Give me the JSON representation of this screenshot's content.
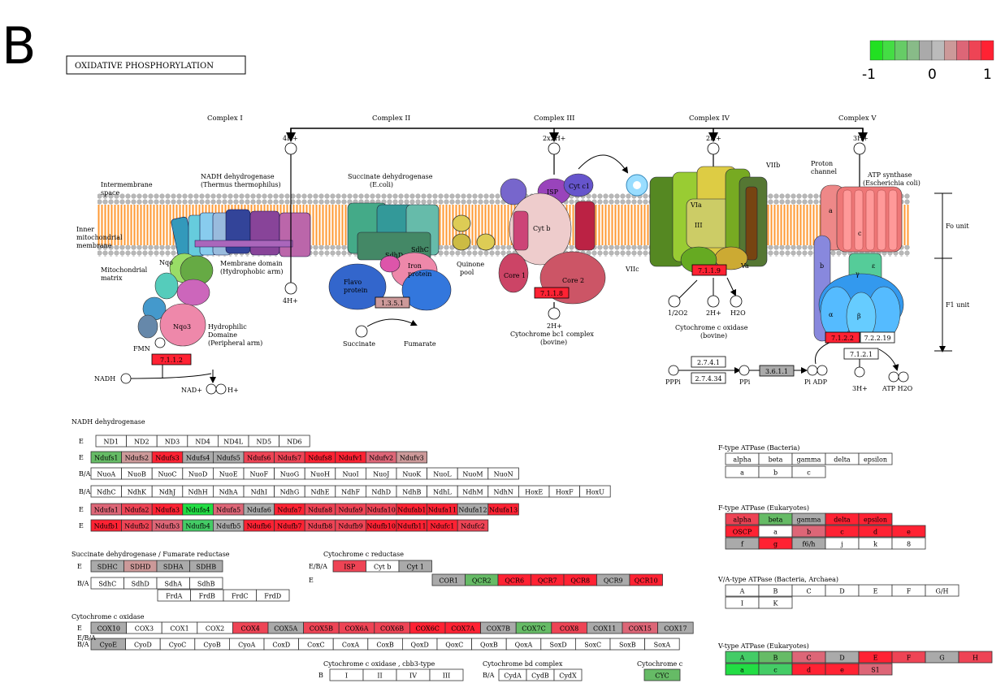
{
  "panel_letter": "B",
  "pathway_title": "OXIDATIVE PHOSPHORYLATION",
  "legend": {
    "min_label": "-1",
    "mid_label": "0",
    "max_label": "1",
    "colors": [
      "#22e022",
      "#44dd44",
      "#66cc66",
      "#88bb88",
      "#aaaaaa",
      "#bbbbbb",
      "#cc9999",
      "#dd6677",
      "#ee4455",
      "#ff2233"
    ]
  },
  "complex_labels": [
    "Complex I",
    "Complex II",
    "Complex III",
    "Complex IV",
    "Complex V"
  ],
  "proton_labels": {
    "c1_top": "4H+",
    "c1_bottom": "4H+",
    "c3_top": "2x2H+",
    "c3_bottom": "2H+",
    "c4_top": "2H+",
    "c4_mid": "2H+",
    "c5_top": "3H+",
    "c5_bottom": "3H+"
  },
  "annotations": {
    "intermembrane": [
      "Intermembrane",
      "space"
    ],
    "inner_membrane": [
      "Inner",
      "mitochondrial",
      "membrane"
    ],
    "matrix": [
      "Mitochondrial",
      "matrix"
    ],
    "nadh_dh": [
      "NADH dehydrogenase",
      "(Thermus thermophilus)"
    ],
    "membrane_domain": [
      "Membrane domain",
      "(Hydrophobic arm)"
    ],
    "hydrophilic": [
      "Hydrophilic",
      "Domaine",
      "(Peripheral arm)"
    ],
    "fmn": "FMN",
    "nadh": "NADH",
    "nad": "NAD+",
    "h_plus": "H+",
    "succ_dh": [
      "Succinate dehydrogenase",
      "(E.coli)"
    ],
    "flavo": [
      "Flavo",
      "protein"
    ],
    "iron": [
      "Iron",
      "protein"
    ],
    "quinone": [
      "Quinone",
      "pool"
    ],
    "succinate": "Succinate",
    "fumarate": "Fumarate",
    "cyt_bc1": [
      "Cytochrome bc1 complex",
      "(bovine)"
    ],
    "cyt_ox": [
      "Cytochrome c oxidase",
      "(bovine)"
    ],
    "o2": "1/2O2",
    "h2o": "H2O",
    "proton_channel": [
      "Proton",
      "channel"
    ],
    "atp_synth": [
      "ATP synthase",
      "(Escherichia coli)"
    ],
    "fo": "Fo unit",
    "f1": "F1 unit",
    "ppi1": "PPPi",
    "ppi2": "PPi",
    "pi_adp": "Pi ADP",
    "atp_h2o": "ATP H2O"
  },
  "ec_boxes": [
    {
      "id": "7.1.1.2",
      "color": "#ff2233"
    },
    {
      "id": "1.3.5.1",
      "color": "#cc9999"
    },
    {
      "id": "7.1.1.8",
      "color": "#ff2233"
    },
    {
      "id": "7.1.1.9",
      "color": "#ff2233"
    },
    {
      "id": "7.1.2.2",
      "color": "#ff2233"
    },
    {
      "id": "7.2.2.19",
      "color": "#ffffff"
    },
    {
      "id": "7.1.2.1",
      "color": "#ffffff"
    },
    {
      "id": "2.7.4.1",
      "color": "#ffffff"
    },
    {
      "id": "2.7.4.34",
      "color": "#ffffff"
    },
    {
      "id": "3.6.1.1",
      "color": "#aaaaaa"
    }
  ],
  "tables": [
    {
      "title": "NADH dehydrogenase",
      "rows": [
        {
          "label": "E",
          "cells": [
            [
              "ND1",
              "#fff"
            ],
            [
              "ND2",
              "#fff"
            ],
            [
              "ND3",
              "#fff"
            ],
            [
              "ND4",
              "#fff"
            ],
            [
              "ND4L",
              "#fff"
            ],
            [
              "ND5",
              "#fff"
            ],
            [
              "ND6",
              "#fff"
            ]
          ]
        },
        {
          "label": "E",
          "cells": [
            [
              "Ndufs1",
              "#66bb66"
            ],
            [
              "Ndufs2",
              "#cc9999"
            ],
            [
              "Ndufs3",
              "#ff2233"
            ],
            [
              "Ndufs4",
              "#aaaaaa"
            ],
            [
              "Ndufs5",
              "#aaaaaa"
            ],
            [
              "Ndufs6",
              "#ee4455"
            ],
            [
              "Ndufs7",
              "#ee4455"
            ],
            [
              "Ndufs8",
              "#ff2233"
            ],
            [
              "Ndufv1",
              "#ff2233"
            ],
            [
              "Ndufv2",
              "#dd6677"
            ],
            [
              "Ndufv3",
              "#cc9999"
            ]
          ]
        },
        {
          "label": "B/A",
          "cells": [
            [
              "NuoA",
              "#fff"
            ],
            [
              "NuoB",
              "#fff"
            ],
            [
              "NuoC",
              "#fff"
            ],
            [
              "NuoD",
              "#fff"
            ],
            [
              "NuoE",
              "#fff"
            ],
            [
              "NuoF",
              "#fff"
            ],
            [
              "NuoG",
              "#fff"
            ],
            [
              "NuoH",
              "#fff"
            ],
            [
              "NuoI",
              "#fff"
            ],
            [
              "NuoJ",
              "#fff"
            ],
            [
              "NuoK",
              "#fff"
            ],
            [
              "NuoL",
              "#fff"
            ],
            [
              "NuoM",
              "#fff"
            ],
            [
              "NuoN",
              "#fff"
            ]
          ]
        },
        {
          "label": "B/A",
          "cells": [
            [
              "NdhC",
              "#fff"
            ],
            [
              "NdhK",
              "#fff"
            ],
            [
              "NdhJ",
              "#fff"
            ],
            [
              "NdhH",
              "#fff"
            ],
            [
              "NdhA",
              "#fff"
            ],
            [
              "NdhI",
              "#fff"
            ],
            [
              "NdhG",
              "#fff"
            ],
            [
              "NdhE",
              "#fff"
            ],
            [
              "NdhF",
              "#fff"
            ],
            [
              "NdhD",
              "#fff"
            ],
            [
              "NdhB",
              "#fff"
            ],
            [
              "NdhL",
              "#fff"
            ],
            [
              "NdhM",
              "#fff"
            ],
            [
              "NdhN",
              "#fff"
            ],
            [
              "HoxE",
              "#fff"
            ],
            [
              "HoxF",
              "#fff"
            ],
            [
              "HoxU",
              "#fff"
            ]
          ]
        },
        {
          "label": "E",
          "cells": [
            [
              "Ndufa1",
              "#dd6677"
            ],
            [
              "Ndufa2",
              "#ee4455"
            ],
            [
              "Ndufa3",
              "#ff2233"
            ],
            [
              "Ndufa4",
              "#22dd44"
            ],
            [
              "Ndufa5",
              "#dd6677"
            ],
            [
              "Ndufa6",
              "#aaaaaa"
            ],
            [
              "Ndufa7",
              "#ff2233"
            ],
            [
              "Ndufa8",
              "#ee4455"
            ],
            [
              "Ndufa9",
              "#ee4455"
            ],
            [
              "Ndufa10",
              "#ee4455"
            ],
            [
              "Ndufab1",
              "#ff2233"
            ],
            [
              "Ndufa11",
              "#ff2233"
            ],
            [
              "Ndufa12",
              "#aaaaaa"
            ],
            [
              "Ndufa13",
              "#ff2233"
            ]
          ]
        },
        {
          "label": "E",
          "cells": [
            [
              "Ndufb1",
              "#ff2233"
            ],
            [
              "Ndufb2",
              "#ee4455"
            ],
            [
              "Ndufb3",
              "#dd6677"
            ],
            [
              "Ndufb4",
              "#44cc66"
            ],
            [
              "Ndufb5",
              "#aaaaaa"
            ],
            [
              "Ndufb6",
              "#ff2233"
            ],
            [
              "Ndufb7",
              "#ff2233"
            ],
            [
              "Ndufb8",
              "#ee4455"
            ],
            [
              "Ndufb9",
              "#ee4455"
            ],
            [
              "Ndufb10",
              "#ff2233"
            ],
            [
              "Ndufb11",
              "#ff2233"
            ],
            [
              "Ndufc1",
              "#ff2233"
            ],
            [
              "Ndufc2",
              "#ee4455"
            ]
          ]
        }
      ]
    },
    {
      "title": "Succinate dehydrogenase / Fumarate reductase",
      "rows": [
        {
          "label": "E",
          "cells": [
            [
              "SDHC",
              "#aaaaaa"
            ],
            [
              "SDHD",
              "#cc9999"
            ],
            [
              "SDHA",
              "#aaaaaa"
            ],
            [
              "SDHB",
              "#aaaaaa"
            ]
          ]
        },
        {
          "label": "B/A",
          "cells": [
            [
              "SdhC",
              "#fff"
            ],
            [
              "SdhD",
              "#fff"
            ],
            [
              "SdhA",
              "#fff"
            ],
            [
              "SdhB",
              "#fff"
            ]
          ]
        },
        {
          "label": "",
          "cells": [
            [
              "FrdA",
              "#fff"
            ],
            [
              "FrdB",
              "#fff"
            ],
            [
              "FrdC",
              "#fff"
            ],
            [
              "FrdD",
              "#fff"
            ]
          ]
        }
      ]
    },
    {
      "title": "Cytochrome c reductase",
      "rows": [
        {
          "label": "E/B/A",
          "cells": [
            [
              "ISP",
              "#ee4455"
            ],
            [
              "Cyt b",
              "#fff"
            ],
            [
              "Cyt 1",
              "#aaaaaa"
            ]
          ]
        },
        {
          "label": "E",
          "cells": [
            [
              "COR1",
              "#aaaaaa"
            ],
            [
              "QCR2",
              "#66bb66"
            ],
            [
              "QCR6",
              "#ff2233"
            ],
            [
              "QCR7",
              "#ff2233"
            ],
            [
              "QCR8",
              "#ff2233"
            ],
            [
              "QCR9",
              "#aaaaaa"
            ],
            [
              "QCR10",
              "#ff2233"
            ]
          ]
        }
      ]
    },
    {
      "title": "Cytochrome c oxidase",
      "rows": [
        {
          "label": "E",
          "cells": [
            [
              "COX10",
              "#aaaaaa"
            ],
            [
              "COX3",
              "#fff"
            ],
            [
              "COX1",
              "#fff"
            ],
            [
              "COX2",
              "#fff"
            ],
            [
              "COX4",
              "#ee4455"
            ],
            [
              "COX5A",
              "#aaaaaa"
            ],
            [
              "COX5B",
              "#ee4455"
            ],
            [
              "COX6A",
              "#ee4455"
            ],
            [
              "COX6B",
              "#ee4455"
            ],
            [
              "COX6C",
              "#ff2233"
            ],
            [
              "COX7A",
              "#ff2233"
            ],
            [
              "COX7B",
              "#aaaaaa"
            ],
            [
              "COX7C",
              "#66bb66"
            ],
            [
              "COX8",
              "#ee4455"
            ],
            [
              "COX11",
              "#aaaaaa"
            ],
            [
              "COX15",
              "#dd6677"
            ],
            [
              "COX17",
              "#aaaaaa"
            ]
          ]
        },
        {
          "label": "B/A",
          "cells": [
            [
              "CyoE",
              "#aaaaaa"
            ],
            [
              "CyoD",
              "#fff"
            ],
            [
              "CyoC",
              "#fff"
            ],
            [
              "CyoB",
              "#fff"
            ],
            [
              "CyoA",
              "#fff"
            ],
            [
              "CoxD",
              "#fff"
            ],
            [
              "CoxC",
              "#fff"
            ],
            [
              "CoxA",
              "#fff"
            ],
            [
              "CoxB",
              "#fff"
            ],
            [
              "QoxD",
              "#fff"
            ],
            [
              "QoxC",
              "#fff"
            ],
            [
              "QoxB",
              "#fff"
            ],
            [
              "QoxA",
              "#fff"
            ],
            [
              "SoxD",
              "#fff"
            ],
            [
              "SoxC",
              "#fff"
            ],
            [
              "SoxB",
              "#fff"
            ],
            [
              "SoxA",
              "#fff"
            ]
          ]
        },
        {
          "label": "E/B/A",
          "cells": []
        }
      ]
    },
    {
      "title": "Cytochrome c oxidase , cbb3-type",
      "rows": [
        {
          "label": "B",
          "cells": [
            [
              "I",
              "#fff"
            ],
            [
              "II",
              "#fff"
            ],
            [
              "IV",
              "#fff"
            ],
            [
              "III",
              "#fff"
            ]
          ]
        }
      ]
    },
    {
      "title": "Cytochrome bd complex",
      "rows": [
        {
          "label": "B/A",
          "cells": [
            [
              "CydA",
              "#fff"
            ],
            [
              "CydB",
              "#fff"
            ],
            [
              "CydX",
              "#fff"
            ]
          ]
        }
      ]
    },
    {
      "title": "Cytochrome c",
      "rows": [
        {
          "label": "",
          "cells": [
            [
              "CYC",
              "#66bb66"
            ]
          ]
        }
      ]
    },
    {
      "title": "F-type ATPase (Bacteria)",
      "rows": [
        {
          "label": "",
          "cells": [
            [
              "alpha",
              "#fff"
            ],
            [
              "beta",
              "#fff"
            ],
            [
              "gamma",
              "#fff"
            ],
            [
              "delta",
              "#fff"
            ],
            [
              "epsilon",
              "#fff"
            ]
          ]
        },
        {
          "label": "",
          "cells": [
            [
              "a",
              "#fff"
            ],
            [
              "b",
              "#fff"
            ],
            [
              "c",
              "#fff"
            ]
          ]
        }
      ]
    },
    {
      "title": "F-type ATPase (Eukaryotes)",
      "rows": [
        {
          "label": "",
          "cells": [
            [
              "alpha",
              "#ee4455"
            ],
            [
              "beta",
              "#66bb66"
            ],
            [
              "gamma",
              "#aaaaaa"
            ],
            [
              "delta",
              "#ff2233"
            ],
            [
              "epsilon",
              "#ff2233"
            ]
          ]
        },
        {
          "label": "",
          "cells": [
            [
              "OSCP",
              "#ff2233"
            ],
            [
              "a",
              "#fff"
            ],
            [
              "b",
              "#dd6677"
            ],
            [
              "c",
              "#ff2233"
            ],
            [
              "d",
              "#ff2233"
            ],
            [
              "e",
              "#ff2233"
            ]
          ]
        },
        {
          "label": "",
          "cells": [
            [
              "f",
              "#aaaaaa"
            ],
            [
              "g",
              "#ff2233"
            ],
            [
              "f6/h",
              "#aaaaaa"
            ],
            [
              "j",
              "#fff"
            ],
            [
              "k",
              "#fff"
            ],
            [
              "8",
              "#fff"
            ]
          ]
        }
      ]
    },
    {
      "title": "V/A-type ATPase (Bacteria, Archaea)",
      "rows": [
        {
          "label": "",
          "cells": [
            [
              "A",
              "#fff"
            ],
            [
              "B",
              "#fff"
            ],
            [
              "C",
              "#fff"
            ],
            [
              "D",
              "#fff"
            ],
            [
              "E",
              "#fff"
            ],
            [
              "F",
              "#fff"
            ],
            [
              "G/H",
              "#fff"
            ]
          ]
        },
        {
          "label": "",
          "cells": [
            [
              "I",
              "#fff"
            ],
            [
              "K",
              "#fff"
            ]
          ]
        }
      ]
    },
    {
      "title": "V-type ATPase (Eukaryotes)",
      "rows": [
        {
          "label": "",
          "cells": [
            [
              "A",
              "#44cc66"
            ],
            [
              "B",
              "#66bb66"
            ],
            [
              "C",
              "#dd6677"
            ],
            [
              "D",
              "#aaaaaa"
            ],
            [
              "E",
              "#ff2233"
            ],
            [
              "F",
              "#ee4455"
            ],
            [
              "G",
              "#aaaaaa"
            ],
            [
              "H",
              "#ee4455"
            ]
          ]
        },
        {
          "label": "",
          "cells": [
            [
              "a",
              "#22dd44"
            ],
            [
              "c",
              "#44cc66"
            ],
            [
              "d",
              "#ff2233"
            ],
            [
              "e",
              "#ff2233"
            ],
            [
              "S1",
              "#dd6677"
            ]
          ]
        }
      ]
    }
  ]
}
